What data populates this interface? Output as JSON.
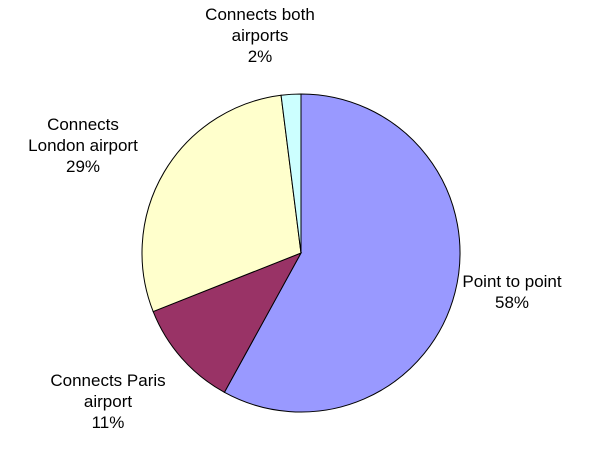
{
  "chart_data": {
    "type": "pie",
    "title": "",
    "slices": [
      {
        "label": [
          "Point to point"
        ],
        "percent_label": "58%",
        "value": 58,
        "color": "#9999ff"
      },
      {
        "label": [
          "Connects Paris",
          "airport"
        ],
        "percent_label": "11%",
        "value": 11,
        "color": "#993366"
      },
      {
        "label": [
          "Connects",
          "London airport"
        ],
        "percent_label": "29%",
        "value": 29,
        "color": "#ffffcc"
      },
      {
        "label": [
          "Connects both",
          "airports"
        ],
        "percent_label": "2%",
        "value": 2,
        "color": "#ccffff"
      }
    ]
  }
}
